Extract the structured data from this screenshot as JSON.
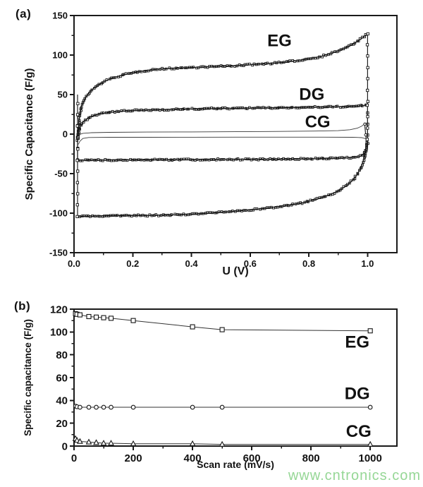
{
  "panels": {
    "a": {
      "letter": "(a)"
    },
    "b": {
      "letter": "(b)"
    }
  },
  "watermark": {
    "text": "www.cntronics.com",
    "color": "#96d796"
  },
  "colors": {
    "axis": "#1a1a1a",
    "curve": "#222222",
    "marker": "#151515",
    "text": "#111111"
  },
  "chart_data": [
    {
      "id": "a",
      "type": "line",
      "subtype": "cyclic-voltammetry-loops",
      "title": "",
      "xlabel": "U (V)",
      "ylabel": "Specific Capacitance (F/g)",
      "xlim": [
        0,
        1.1
      ],
      "ylim": [
        -150,
        150
      ],
      "xticks": [
        0.0,
        0.2,
        0.4,
        0.6,
        0.8,
        1.0
      ],
      "yticks": [
        150,
        100,
        50,
        0,
        -50,
        -100,
        -150
      ],
      "grid": false,
      "series": [
        {
          "name": "EG",
          "marker": "square",
          "segments": [
            {
              "style": "sparse",
              "pts": [
                [
                  0.012,
                  -104
                ],
                [
                  0.012,
                  50
                ]
              ]
            },
            {
              "style": "dense",
              "pts": [
                [
                  0.012,
                  -8
                ],
                [
                  0.018,
                  20
                ],
                [
                  0.025,
                  35
                ],
                [
                  0.04,
                  47
                ],
                [
                  0.06,
                  56
                ],
                [
                  0.09,
                  64
                ],
                [
                  0.13,
                  71
                ],
                [
                  0.17,
                  75
                ],
                [
                  0.22,
                  79
                ],
                [
                  0.28,
                  82
                ],
                [
                  0.35,
                  83.5
                ],
                [
                  0.45,
                  85
                ],
                [
                  0.55,
                  86.5
                ],
                [
                  0.65,
                  89
                ],
                [
                  0.72,
                  91
                ],
                [
                  0.78,
                  94
                ],
                [
                  0.84,
                  98
                ],
                [
                  0.89,
                  104
                ],
                [
                  0.93,
                  110
                ],
                [
                  0.96,
                  116
                ],
                [
                  0.98,
                  121
                ],
                [
                  1.0,
                  127
                ]
              ]
            },
            {
              "style": "sparse",
              "pts": [
                [
                  1.0,
                  127
                ],
                [
                  1.0,
                  -8
                ]
              ]
            },
            {
              "style": "dense",
              "pts": [
                [
                  1.0,
                  -8
                ],
                [
                  0.995,
                  -20
                ],
                [
                  0.99,
                  -28
                ],
                [
                  0.985,
                  -35
                ],
                [
                  0.975,
                  -44
                ],
                [
                  0.965,
                  -51
                ],
                [
                  0.95,
                  -58
                ],
                [
                  0.93,
                  -65
                ],
                [
                  0.9,
                  -72
                ],
                [
                  0.87,
                  -77
                ],
                [
                  0.83,
                  -82
                ],
                [
                  0.78,
                  -87
                ],
                [
                  0.73,
                  -90
                ],
                [
                  0.67,
                  -93
                ],
                [
                  0.6,
                  -96
                ],
                [
                  0.53,
                  -98
                ],
                [
                  0.46,
                  -100
                ],
                [
                  0.39,
                  -101.5
                ],
                [
                  0.31,
                  -102.5
                ],
                [
                  0.24,
                  -103
                ],
                [
                  0.16,
                  -103
                ],
                [
                  0.09,
                  -103.5
                ],
                [
                  0.04,
                  -104
                ],
                [
                  0.015,
                  -104
                ]
              ]
            }
          ]
        },
        {
          "name": "DG",
          "marker": "square",
          "segments": [
            {
              "style": "sparse",
              "pts": [
                [
                  0.012,
                  -33
                ],
                [
                  0.012,
                  12
                ]
              ]
            },
            {
              "style": "dense",
              "pts": [
                [
                  0.012,
                  -3
                ],
                [
                  0.02,
                  8
                ],
                [
                  0.03,
                  15
                ],
                [
                  0.05,
                  21
                ],
                [
                  0.08,
                  25
                ],
                [
                  0.12,
                  27.5
                ],
                [
                  0.18,
                  29.5
                ],
                [
                  0.26,
                  30.5
                ],
                [
                  0.36,
                  31.5
                ],
                [
                  0.5,
                  32.5
                ],
                [
                  0.64,
                  33
                ],
                [
                  0.78,
                  33.8
                ],
                [
                  0.9,
                  34.5
                ],
                [
                  0.97,
                  35.5
                ],
                [
                  1.0,
                  36.5
                ]
              ]
            },
            {
              "style": "sparse",
              "pts": [
                [
                  1.0,
                  36.5
                ],
                [
                  1.0,
                  -12
                ]
              ]
            },
            {
              "style": "dense",
              "pts": [
                [
                  1.0,
                  -12
                ],
                [
                  0.995,
                  -19
                ],
                [
                  0.99,
                  -24
                ],
                [
                  0.98,
                  -27.5
                ],
                [
                  0.96,
                  -29
                ],
                [
                  0.93,
                  -30
                ],
                [
                  0.87,
                  -30.8
                ],
                [
                  0.78,
                  -31.3
                ],
                [
                  0.66,
                  -31.8
                ],
                [
                  0.52,
                  -32
                ],
                [
                  0.4,
                  -32.3
                ],
                [
                  0.28,
                  -32.5
                ],
                [
                  0.17,
                  -32.8
                ],
                [
                  0.08,
                  -33
                ],
                [
                  0.015,
                  -33
                ]
              ]
            }
          ]
        },
        {
          "name": "CG",
          "marker": "circle",
          "segments": [
            {
              "style": "line",
              "pts": [
                [
                  0.015,
                  -1
                ],
                [
                  0.03,
                  1
                ],
                [
                  0.06,
                  1.8
                ],
                [
                  0.12,
                  2.2
                ],
                [
                  0.25,
                  2.6
                ],
                [
                  0.4,
                  2.8
                ],
                [
                  0.55,
                  3
                ],
                [
                  0.7,
                  3.4
                ],
                [
                  0.82,
                  3.8
                ],
                [
                  0.9,
                  4.4
                ],
                [
                  0.94,
                  5.5
                ],
                [
                  0.965,
                  7.5
                ],
                [
                  0.98,
                  10
                ],
                [
                  0.99,
                  13
                ]
              ]
            },
            {
              "style": "sparse",
              "pts": [
                [
                  0.99,
                  13
                ],
                [
                  0.995,
                  -6
                ]
              ]
            },
            {
              "style": "line",
              "pts": [
                [
                  0.995,
                  -6
                ],
                [
                  0.98,
                  -4.5
                ],
                [
                  0.95,
                  -4
                ],
                [
                  0.85,
                  -3.8
                ],
                [
                  0.7,
                  -3.8
                ],
                [
                  0.55,
                  -3.8
                ],
                [
                  0.4,
                  -3.9
                ],
                [
                  0.25,
                  -4
                ],
                [
                  0.12,
                  -4
                ],
                [
                  0.05,
                  -4.3
                ],
                [
                  0.03,
                  -5.5
                ],
                [
                  0.02,
                  -9
                ],
                [
                  0.015,
                  -13
                ]
              ]
            }
          ]
        }
      ],
      "annotations": [
        {
          "text": "EG",
          "x": 0.7,
          "y": 119
        },
        {
          "text": "DG",
          "x": 0.81,
          "y": 51
        },
        {
          "text": "CG",
          "x": 0.83,
          "y": 16
        }
      ]
    },
    {
      "id": "b",
      "type": "line",
      "subtype": "rate-capability",
      "title": "",
      "xlabel": "Scan rate (mV/s)",
      "ylabel": "Specific capacitance (F/g)",
      "xlim": [
        0,
        1090
      ],
      "ylim": [
        0,
        120
      ],
      "xticks": [
        0,
        200,
        400,
        600,
        800,
        1000
      ],
      "yticks": [
        0,
        20,
        40,
        60,
        80,
        100,
        120
      ],
      "grid": false,
      "x": [
        5,
        10,
        20,
        50,
        75,
        100,
        125,
        200,
        400,
        500,
        1000
      ],
      "series": [
        {
          "name": "EG",
          "marker": "square",
          "values": [
            116,
            115.5,
            115,
            113.5,
            113,
            112.5,
            112,
            110,
            104.5,
            102,
            101
          ]
        },
        {
          "name": "DG",
          "marker": "circle",
          "values": [
            35,
            34.5,
            34,
            34,
            34,
            34,
            34,
            34,
            34,
            34,
            34
          ]
        },
        {
          "name": "CG",
          "marker": "triangle",
          "values": [
            6.5,
            5,
            4,
            3.5,
            3,
            2.5,
            2.5,
            2,
            2,
            1.5,
            1.5
          ]
        }
      ],
      "annotations": [
        {
          "text": "EG",
          "x": 956,
          "y": 91.5
        },
        {
          "text": "DG",
          "x": 956,
          "y": 46.5
        },
        {
          "text": "CG",
          "x": 961,
          "y": 13.5
        }
      ]
    }
  ]
}
